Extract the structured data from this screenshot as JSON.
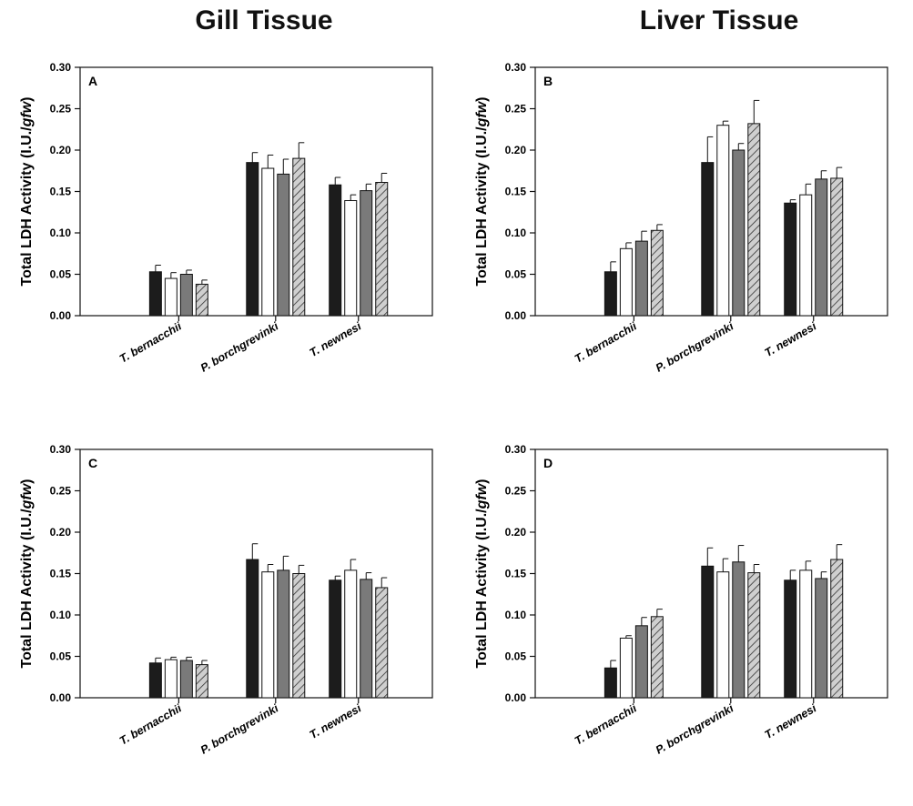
{
  "columns": {
    "left_title": "Gill Tissue",
    "right_title": "Liver Tissue"
  },
  "chart_data": [
    {
      "type": "bar",
      "panel_label": "A",
      "categories": [
        "T. bernacchii",
        "P. borchgrevinki",
        "T. newnesi"
      ],
      "ylabel": "Total LDH Activity (I.U./gfw)",
      "ylim": [
        0,
        0.3
      ],
      "yticks": [
        "0.00",
        "0.05",
        "0.10",
        "0.15",
        "0.20",
        "0.25",
        "0.30"
      ],
      "series": [
        {
          "style": "black",
          "values": [
            0.053,
            0.185,
            0.158
          ],
          "errors": [
            0.008,
            0.012,
            0.009
          ]
        },
        {
          "style": "white",
          "values": [
            0.045,
            0.178,
            0.139
          ],
          "errors": [
            0.007,
            0.016,
            0.007
          ]
        },
        {
          "style": "gray",
          "values": [
            0.05,
            0.171,
            0.151
          ],
          "errors": [
            0.005,
            0.018,
            0.008
          ]
        },
        {
          "style": "hatched",
          "values": [
            0.038,
            0.19,
            0.161
          ],
          "errors": [
            0.005,
            0.019,
            0.011
          ]
        }
      ]
    },
    {
      "type": "bar",
      "panel_label": "B",
      "categories": [
        "T. bernacchii",
        "P. borchgrevinki",
        "T. newnesi"
      ],
      "ylabel": "Total LDH Activity (I.U./gfw)",
      "ylim": [
        0,
        0.3
      ],
      "yticks": [
        "0.00",
        "0.05",
        "0.10",
        "0.15",
        "0.20",
        "0.25",
        "0.30"
      ],
      "series": [
        {
          "style": "black",
          "values": [
            0.053,
            0.185,
            0.136
          ],
          "errors": [
            0.012,
            0.031,
            0.004
          ]
        },
        {
          "style": "white",
          "values": [
            0.081,
            0.23,
            0.146
          ],
          "errors": [
            0.007,
            0.005,
            0.013
          ]
        },
        {
          "style": "gray",
          "values": [
            0.09,
            0.2,
            0.165
          ],
          "errors": [
            0.012,
            0.008,
            0.01
          ]
        },
        {
          "style": "hatched",
          "values": [
            0.103,
            0.232,
            0.166
          ],
          "errors": [
            0.007,
            0.028,
            0.013
          ]
        }
      ]
    },
    {
      "type": "bar",
      "panel_label": "C",
      "categories": [
        "T. bernacchii",
        "P. borchgrevinki",
        "T. newnesi"
      ],
      "ylabel": "Total LDH Activity (I.U./gfw)",
      "ylim": [
        0,
        0.3
      ],
      "yticks": [
        "0.00",
        "0.05",
        "0.10",
        "0.15",
        "0.20",
        "0.25",
        "0.30"
      ],
      "series": [
        {
          "style": "black",
          "values": [
            0.042,
            0.167,
            0.142
          ],
          "errors": [
            0.006,
            0.019,
            0.005
          ]
        },
        {
          "style": "white",
          "values": [
            0.046,
            0.152,
            0.154
          ],
          "errors": [
            0.003,
            0.009,
            0.013
          ]
        },
        {
          "style": "gray",
          "values": [
            0.045,
            0.154,
            0.143
          ],
          "errors": [
            0.004,
            0.017,
            0.008
          ]
        },
        {
          "style": "hatched",
          "values": [
            0.04,
            0.15,
            0.133
          ],
          "errors": [
            0.005,
            0.01,
            0.012
          ]
        }
      ]
    },
    {
      "type": "bar",
      "panel_label": "D",
      "categories": [
        "T. bernacchii",
        "P. borchgrevinki",
        "T. newnesi"
      ],
      "ylabel": "Total LDH Activity (I.U./gfw)",
      "ylim": [
        0,
        0.3
      ],
      "yticks": [
        "0.00",
        "0.05",
        "0.10",
        "0.15",
        "0.20",
        "0.25",
        "0.30"
      ],
      "series": [
        {
          "style": "black",
          "values": [
            0.036,
            0.159,
            0.142
          ],
          "errors": [
            0.009,
            0.022,
            0.012
          ]
        },
        {
          "style": "white",
          "values": [
            0.072,
            0.152,
            0.154
          ],
          "errors": [
            0.003,
            0.016,
            0.011
          ]
        },
        {
          "style": "gray",
          "values": [
            0.087,
            0.164,
            0.144
          ],
          "errors": [
            0.01,
            0.02,
            0.008
          ]
        },
        {
          "style": "hatched",
          "values": [
            0.098,
            0.151,
            0.167
          ],
          "errors": [
            0.009,
            0.01,
            0.018
          ]
        }
      ]
    }
  ]
}
